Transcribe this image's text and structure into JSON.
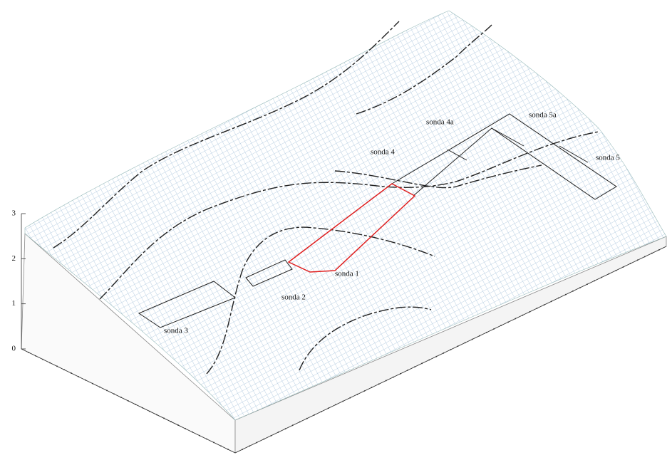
{
  "chart_data": {
    "type": "surface",
    "zlim": [
      0,
      3
    ],
    "zticks": [
      0,
      1,
      2,
      3
    ],
    "annotations": [
      "sonda 4a",
      "sonda 5a",
      "sonda 4",
      "sonda 5",
      "sonda 1",
      "sonda 2",
      "sonda 3"
    ],
    "mesh_color": "#a9c4dc"
  }
}
